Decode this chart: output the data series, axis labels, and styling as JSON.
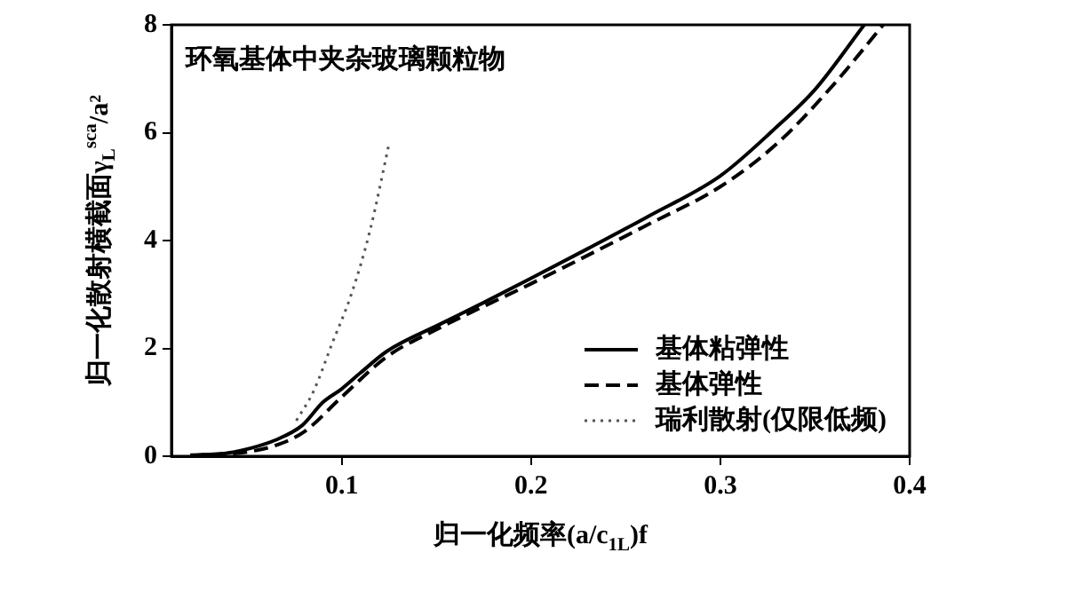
{
  "chart_data": {
    "type": "line",
    "title": "环氧基体中夹杂玻璃颗粒物",
    "xlabel": "归一化频率(a/c$_{1L}$)f",
    "ylabel": "归一化散射横截面γ$_{L}$$^{sca}$/a²",
    "xlim": [
      0.01,
      0.4
    ],
    "xticks": [
      0.1,
      0.2,
      0.3,
      0.4
    ],
    "ylim": [
      0,
      8
    ],
    "yticks": [
      0,
      2,
      4,
      6,
      8
    ],
    "grid": false,
    "legend": "bottom right",
    "marker": "none",
    "series": [
      {
        "name": "基体粘弹性",
        "color": "#000000",
        "line_style": "solid",
        "x": [
          0.02,
          0.04,
          0.052,
          0.065,
          0.079,
          0.09,
          0.1,
          0.11,
          0.124,
          0.152,
          0.175,
          0.2,
          0.23,
          0.262,
          0.3,
          0.328,
          0.35,
          0.376
        ],
        "values": [
          0.02,
          0.06,
          0.15,
          0.3,
          0.57,
          1.0,
          1.25,
          1.55,
          1.95,
          2.45,
          2.85,
          3.3,
          3.85,
          4.45,
          5.2,
          6.05,
          6.8,
          8.0
        ]
      },
      {
        "name": "基体弹性",
        "color": "#000000",
        "line_style": "dashed",
        "x": [
          0.02,
          0.05,
          0.065,
          0.08,
          0.1,
          0.124,
          0.15,
          0.2,
          0.262,
          0.3,
          0.33,
          0.36,
          0.386
        ],
        "values": [
          0.01,
          0.08,
          0.2,
          0.45,
          1.1,
          1.85,
          2.35,
          3.2,
          4.3,
          5.0,
          5.8,
          6.9,
          8.0
        ]
      },
      {
        "name": "瑞利散射(仅限低频)",
        "color": "#555555",
        "line_style": "dotted",
        "x": [
          0.076,
          0.085,
          0.095,
          0.105,
          0.115,
          0.125
        ],
        "values": [
          0.66,
          1.2,
          2.1,
          3.0,
          4.2,
          5.8
        ]
      }
    ]
  }
}
